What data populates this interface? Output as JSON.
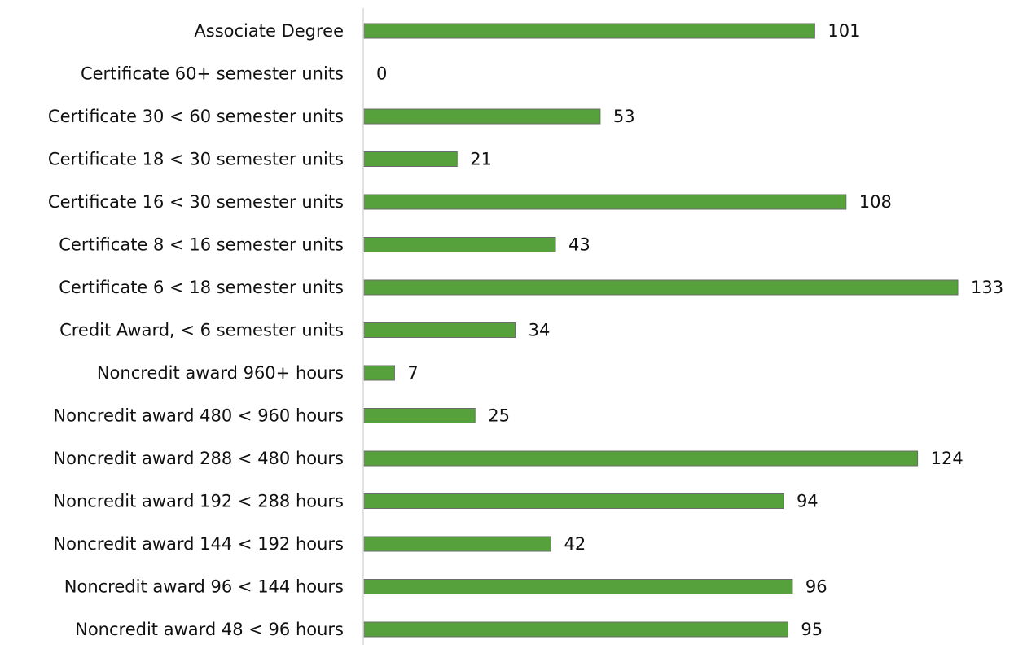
{
  "chart_data": {
    "type": "bar",
    "orientation": "horizontal",
    "categories": [
      "Associate Degree",
      "Certificate 60+ semester units",
      "Certificate 30 < 60 semester units",
      "Certificate 18 < 30 semester units",
      "Certificate 16 < 30 semester units",
      "Certificate 8 < 16 semester units",
      "Certificate 6 < 18 semester units",
      "Credit Award, < 6 semester units",
      "Noncredit award 960+ hours",
      "Noncredit award 480 < 960 hours",
      "Noncredit award 288 < 480 hours",
      "Noncredit award 192 < 288 hours",
      "Noncredit award 144 < 192 hours",
      "Noncredit award 96 < 144 hours",
      "Noncredit award 48 < 96 hours"
    ],
    "values": [
      101,
      0,
      53,
      21,
      108,
      43,
      133,
      34,
      7,
      25,
      124,
      94,
      42,
      96,
      95
    ],
    "data_labels": [
      "101",
      "0",
      "53",
      "21",
      "108",
      "43",
      "133",
      "34",
      "7",
      "25",
      "124",
      "94",
      "42",
      "96",
      "95"
    ],
    "xlim": [
      0,
      133
    ],
    "grid": false,
    "legend": "none",
    "colors": {
      "bar": "#56a13c",
      "bar_edge": "#6b6b6b",
      "axis": "#d9d9d9"
    }
  }
}
